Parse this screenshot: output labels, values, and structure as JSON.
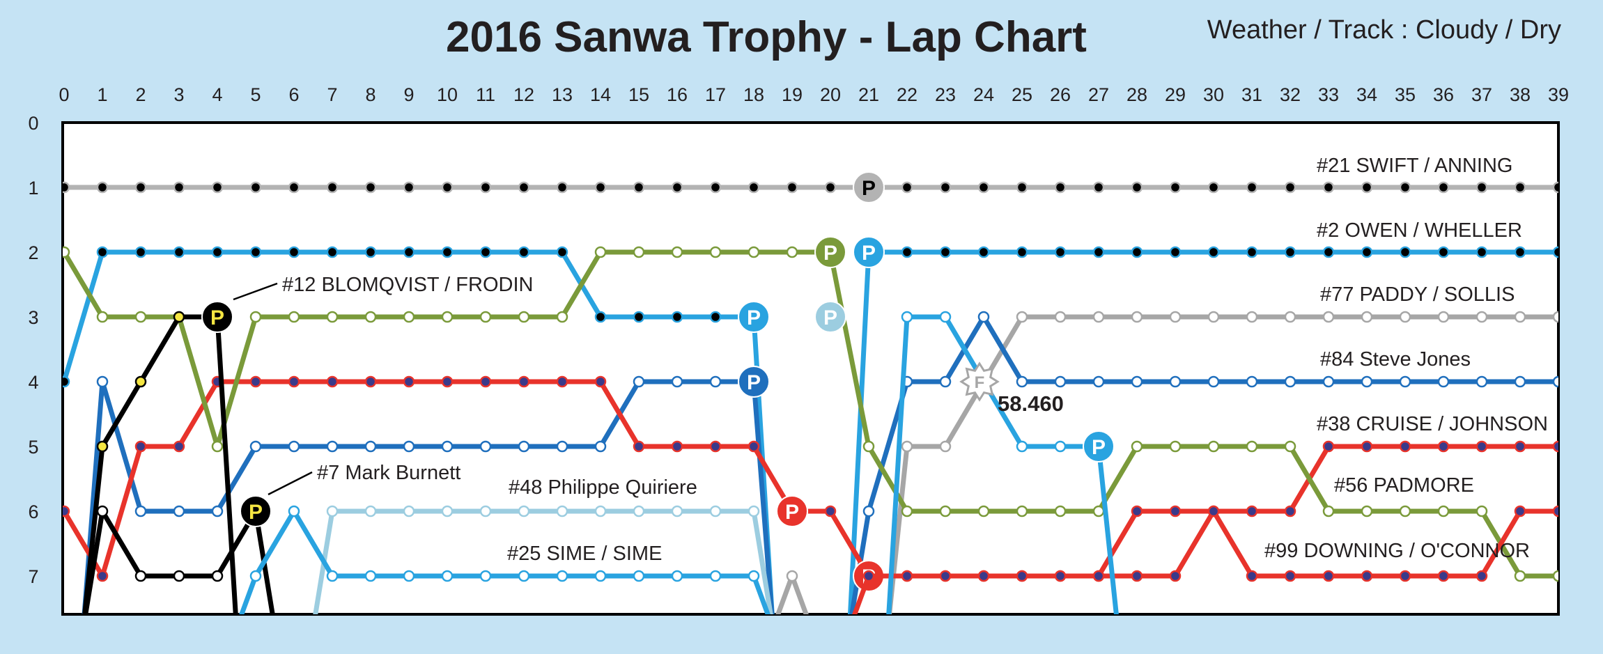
{
  "header": {
    "title": "2016 Sanwa Trophy - Lap Chart",
    "weather": "Weather / Track : Cloudy / Dry"
  },
  "chart_data": {
    "type": "line",
    "title": "2016 Sanwa Trophy - Lap Chart",
    "x_ticks": [
      0,
      1,
      2,
      3,
      4,
      5,
      6,
      7,
      8,
      9,
      10,
      11,
      12,
      13,
      14,
      15,
      16,
      17,
      18,
      19,
      20,
      21,
      22,
      23,
      24,
      25,
      26,
      27,
      28,
      29,
      30,
      31,
      32,
      33,
      34,
      35,
      36,
      37,
      38,
      39
    ],
    "y_ticks": [
      0,
      1,
      2,
      3,
      4,
      5,
      6,
      7
    ],
    "xlim": [
      0,
      39
    ],
    "ylim": [
      0,
      7.7
    ],
    "y_inverted": true,
    "grid": "horizontal",
    "pit_marker": "P",
    "fastest_lap_marker": "F",
    "fastest_lap": {
      "label": "58.460",
      "lap": 24,
      "pos": 4
    },
    "series": [
      {
        "name": "#21  SWIFT / ANNING",
        "color": "#b3b3b3",
        "dot": "#000000",
        "positions": [
          1,
          1,
          1,
          1,
          1,
          1,
          1,
          1,
          1,
          1,
          1,
          1,
          1,
          1,
          1,
          1,
          1,
          1,
          1,
          1,
          1,
          1,
          1,
          1,
          1,
          1,
          1,
          1,
          1,
          1,
          1,
          1,
          1,
          1,
          1,
          1,
          1,
          1,
          1,
          1
        ],
        "pits": [
          21
        ]
      },
      {
        "name": "#2  OWEN / WHELLER",
        "color": "#29a3e0",
        "dot": "#000000",
        "positions": [
          4,
          2,
          2,
          2,
          2,
          2,
          2,
          2,
          2,
          2,
          2,
          2,
          2,
          2,
          3,
          3,
          3,
          3,
          3,
          null,
          null,
          2,
          2,
          2,
          2,
          2,
          2,
          2,
          2,
          2,
          2,
          2,
          2,
          2,
          2,
          2,
          2,
          2,
          2,
          2
        ],
        "pits": [
          18,
          21
        ]
      },
      {
        "name": "#77  PADDY / SOLLIS",
        "color": "#a6a6a6",
        "dot": "#ffffff",
        "positions": [
          null,
          null,
          null,
          null,
          null,
          null,
          null,
          null,
          null,
          null,
          null,
          null,
          null,
          null,
          null,
          null,
          null,
          null,
          null,
          7,
          null,
          null,
          5,
          5,
          4,
          3,
          3,
          3,
          3,
          3,
          3,
          3,
          3,
          3,
          3,
          3,
          3,
          3,
          3,
          3
        ],
        "pits": []
      },
      {
        "name": "#84  Steve Jones",
        "color": "#1f6fbd",
        "dot": "#ffffff",
        "positions": [
          null,
          4,
          6,
          6,
          6,
          5,
          5,
          5,
          5,
          5,
          5,
          5,
          5,
          5,
          5,
          4,
          4,
          4,
          4,
          null,
          null,
          6,
          4,
          4,
          3,
          4,
          4,
          4,
          4,
          4,
          4,
          4,
          4,
          4,
          4,
          4,
          4,
          4,
          4,
          4
        ],
        "pits": [
          18
        ]
      },
      {
        "name": "#38  CRUISE / JOHNSON",
        "color": "#e8332b",
        "dot": "#3a3a8a",
        "positions": [
          6,
          7,
          5,
          5,
          4,
          4,
          4,
          4,
          4,
          4,
          4,
          4,
          4,
          4,
          4,
          5,
          5,
          5,
          5,
          6,
          6,
          7,
          7,
          7,
          7,
          7,
          7,
          7,
          6,
          6,
          6,
          6,
          6,
          5,
          5,
          5,
          5,
          5,
          5,
          5
        ],
        "pits": [
          19,
          21
        ]
      },
      {
        "name": "#56  PADMORE",
        "color": "#7a9a3a",
        "dot": "#ffffff",
        "positions": [
          2,
          3,
          3,
          3,
          5,
          3,
          3,
          3,
          3,
          3,
          3,
          3,
          3,
          3,
          2,
          2,
          2,
          2,
          2,
          2,
          2,
          5,
          6,
          6,
          6,
          6,
          6,
          6,
          5,
          5,
          5,
          5,
          5,
          6,
          6,
          6,
          6,
          6,
          7,
          7
        ],
        "pits": [
          20
        ]
      },
      {
        "name": "#99  DOWNING / O'CONNOR",
        "color": "#e8332b",
        "dot": "#3a3a8a",
        "positions": [
          null,
          null,
          null,
          null,
          null,
          null,
          null,
          null,
          null,
          null,
          null,
          null,
          null,
          null,
          null,
          null,
          null,
          null,
          null,
          null,
          null,
          7,
          7,
          7,
          7,
          7,
          7,
          7,
          7,
          7,
          6,
          7,
          7,
          7,
          7,
          7,
          7,
          7,
          6,
          6
        ],
        "pits": []
      },
      {
        "name": "#12  BLOMQVIST / FRODIN",
        "color": "#000000",
        "dot": "#f5e642",
        "positions": [
          null,
          5,
          4,
          3,
          3,
          null,
          null,
          null,
          null,
          null,
          null,
          null,
          null,
          null,
          null,
          null,
          null,
          null,
          null,
          null,
          null,
          null,
          null,
          null,
          null,
          null,
          null,
          null,
          null,
          null,
          null,
          null,
          null,
          null,
          null,
          null,
          null,
          null,
          null,
          null
        ],
        "pits": [
          4
        ]
      },
      {
        "name": "#7  Mark Burnett",
        "color": "#000000",
        "dot": "#ffffff",
        "positions": [
          null,
          6,
          7,
          7,
          7,
          6,
          null,
          null,
          null,
          null,
          null,
          null,
          null,
          null,
          null,
          null,
          null,
          null,
          null,
          null,
          null,
          null,
          null,
          null,
          null,
          null,
          null,
          null,
          null,
          null,
          null,
          null,
          null,
          null,
          null,
          null,
          null,
          null,
          null,
          null
        ],
        "pits": [
          5
        ]
      },
      {
        "name": "#48  Philippe Quiriere",
        "color": "#9ccde0",
        "dot": "#ffffff",
        "positions": [
          null,
          null,
          null,
          null,
          null,
          null,
          null,
          6,
          6,
          6,
          6,
          6,
          6,
          6,
          6,
          6,
          6,
          6,
          6,
          null,
          null,
          null,
          null,
          null,
          null,
          null,
          null,
          null,
          null,
          null,
          null,
          null,
          null,
          null,
          null,
          null,
          null,
          null,
          null,
          null
        ],
        "pits": [
          20
        ]
      },
      {
        "name": "#25  SIME / SIME",
        "color": "#29a3e0",
        "dot": "#ffffff",
        "positions": [
          null,
          null,
          null,
          null,
          null,
          7,
          6,
          7,
          7,
          7,
          7,
          7,
          7,
          7,
          7,
          7,
          7,
          7,
          7,
          null,
          null,
          null,
          3,
          3,
          4,
          5,
          5,
          5,
          null,
          null,
          null,
          null,
          null,
          null,
          null,
          null,
          null,
          null,
          null,
          null
        ],
        "pits": [
          27
        ]
      }
    ]
  }
}
